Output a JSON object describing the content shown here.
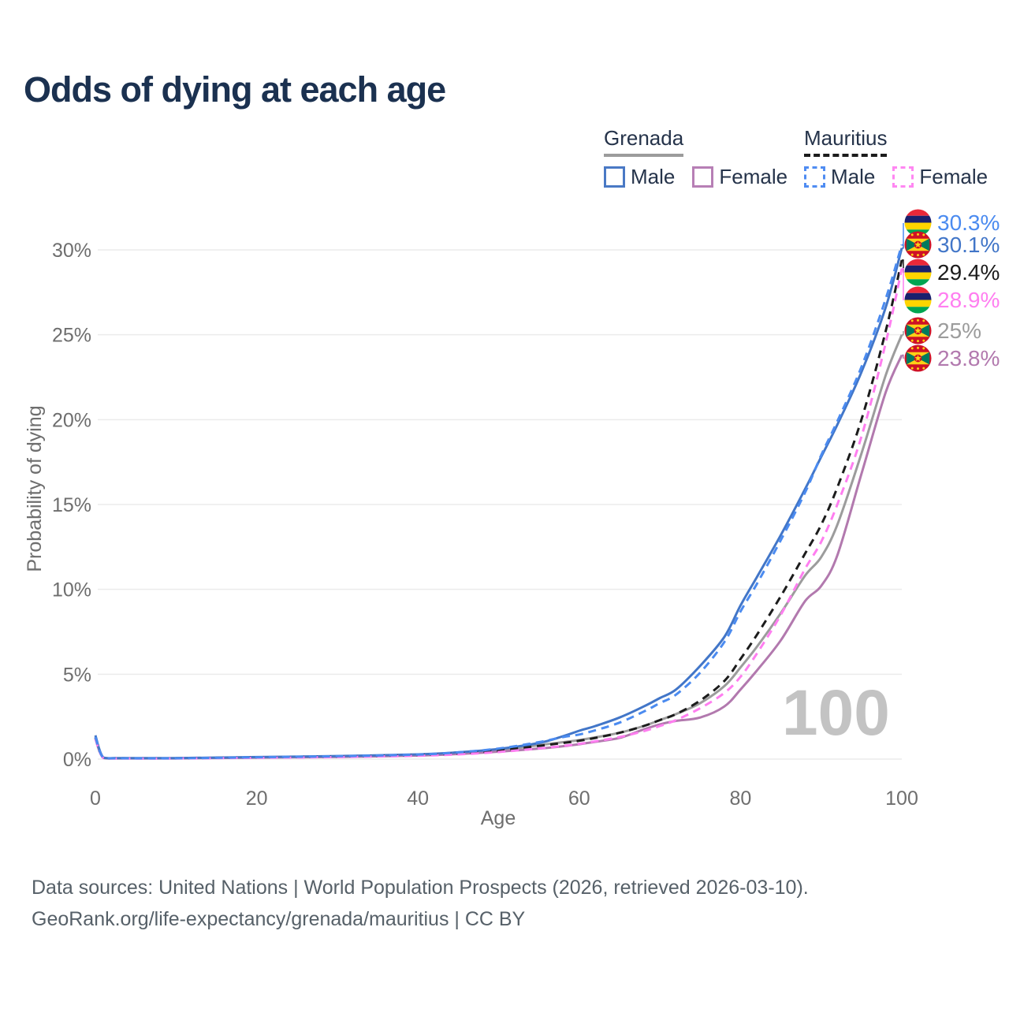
{
  "title": "Odds of dying at each age",
  "watermark": "100",
  "legend": {
    "groups": [
      {
        "title": "Grenada",
        "line_style": "solid",
        "line_color": "#9c9c9c",
        "items": [
          {
            "label": "Male",
            "color": "#4a79c5",
            "dash": false
          },
          {
            "label": "Female",
            "color": "#b77fb5",
            "dash": false
          }
        ]
      },
      {
        "title": "Mauritius",
        "line_style": "dashed",
        "line_color": "#1c1c1c",
        "items": [
          {
            "label": "Male",
            "color": "#4f8cf2",
            "dash": true
          },
          {
            "label": "Female",
            "color": "#ff87f2",
            "dash": true
          }
        ]
      }
    ]
  },
  "footer": {
    "line1": "Data sources: United Nations | World Population Prospects (2026, retrieved 2026-03-10).",
    "line2": "GeoRank.org/life-expectancy/grenada/mauritius | CC BY"
  },
  "chart_data": {
    "type": "line",
    "xlabel": "Age",
    "ylabel": "Probability of dying",
    "xlim": [
      0,
      100
    ],
    "ylim_pct": [
      0,
      31
    ],
    "grid": true,
    "x_ticks": [
      0,
      20,
      40,
      60,
      80,
      100
    ],
    "y_ticks": [
      {
        "value": 0,
        "label": "0%"
      },
      {
        "value": 5,
        "label": "5%"
      },
      {
        "value": 10,
        "label": "10%"
      },
      {
        "value": 15,
        "label": "15%"
      },
      {
        "value": 20,
        "label": "20%"
      },
      {
        "value": 25,
        "label": "25%"
      },
      {
        "value": 30,
        "label": "30%"
      }
    ],
    "ages": [
      0,
      1,
      3,
      10,
      20,
      30,
      40,
      45,
      50,
      55,
      58,
      60,
      62,
      65,
      68,
      70,
      72,
      75,
      78,
      80,
      82,
      85,
      88,
      90,
      92,
      95,
      98,
      100
    ],
    "series": [
      {
        "name": "Grenada",
        "country": "grenada",
        "color": "#9c9c9c",
        "dash": false,
        "end_label": "25%",
        "values": [
          1.3,
          0.08,
          0.05,
          0.05,
          0.11,
          0.16,
          0.25,
          0.36,
          0.52,
          0.82,
          1.0,
          1.12,
          1.28,
          1.55,
          1.95,
          2.3,
          2.65,
          3.3,
          4.3,
          5.4,
          6.6,
          8.6,
          10.8,
          11.9,
          13.8,
          18.0,
          22.6,
          25.0
        ]
      },
      {
        "name": "Grenada Female",
        "country": "grenada",
        "color": "#b279ae",
        "dash": false,
        "end_label": "23.8%",
        "values": [
          1.2,
          0.07,
          0.04,
          0.04,
          0.09,
          0.13,
          0.21,
          0.3,
          0.44,
          0.62,
          0.76,
          0.88,
          1.02,
          1.25,
          1.75,
          2.05,
          2.25,
          2.45,
          3.1,
          4.1,
          5.2,
          7.0,
          9.3,
          10.2,
          12.0,
          16.8,
          21.6,
          23.8
        ]
      },
      {
        "name": "Grenada Male",
        "country": "grenada",
        "color": "#4276c8",
        "dash": false,
        "end_label": "30.1%",
        "values": [
          1.4,
          0.09,
          0.06,
          0.06,
          0.12,
          0.18,
          0.28,
          0.4,
          0.6,
          0.95,
          1.35,
          1.67,
          1.95,
          2.45,
          3.1,
          3.6,
          4.1,
          5.5,
          7.2,
          9.05,
          10.7,
          13.2,
          15.9,
          17.8,
          19.7,
          22.8,
          26.6,
          30.1
        ]
      },
      {
        "name": "Mauritius",
        "country": "mauritius",
        "color": "#1c1c1c",
        "dash": true,
        "end_label": "29.4%",
        "values": [
          1.25,
          0.07,
          0.05,
          0.05,
          0.1,
          0.15,
          0.24,
          0.34,
          0.5,
          0.78,
          0.95,
          1.08,
          1.25,
          1.55,
          1.95,
          2.3,
          2.65,
          3.45,
          4.6,
          5.9,
          7.3,
          9.6,
          12.1,
          13.8,
          16.0,
          20.0,
          25.2,
          29.4
        ]
      },
      {
        "name": "Mauritius Female",
        "country": "mauritius",
        "color": "#ff7ef0",
        "dash": true,
        "end_label": "28.9%",
        "values": [
          1.2,
          0.06,
          0.04,
          0.04,
          0.08,
          0.12,
          0.2,
          0.28,
          0.42,
          0.63,
          0.78,
          0.9,
          1.05,
          1.3,
          1.65,
          1.95,
          2.3,
          3.0,
          3.9,
          4.85,
          6.2,
          8.5,
          11.2,
          12.8,
          15.0,
          19.0,
          24.5,
          28.9
        ]
      },
      {
        "name": "Mauritius Male",
        "country": "mauritius",
        "color": "#4b8bf0",
        "dash": true,
        "end_label": "30.3%",
        "values": [
          1.3,
          0.08,
          0.05,
          0.05,
          0.11,
          0.17,
          0.27,
          0.4,
          0.62,
          1.0,
          1.3,
          1.45,
          1.7,
          2.15,
          2.8,
          3.3,
          3.8,
          5.1,
          6.9,
          8.7,
          10.3,
          12.9,
          15.7,
          17.9,
          19.9,
          23.1,
          27.1,
          30.3
        ]
      }
    ]
  }
}
